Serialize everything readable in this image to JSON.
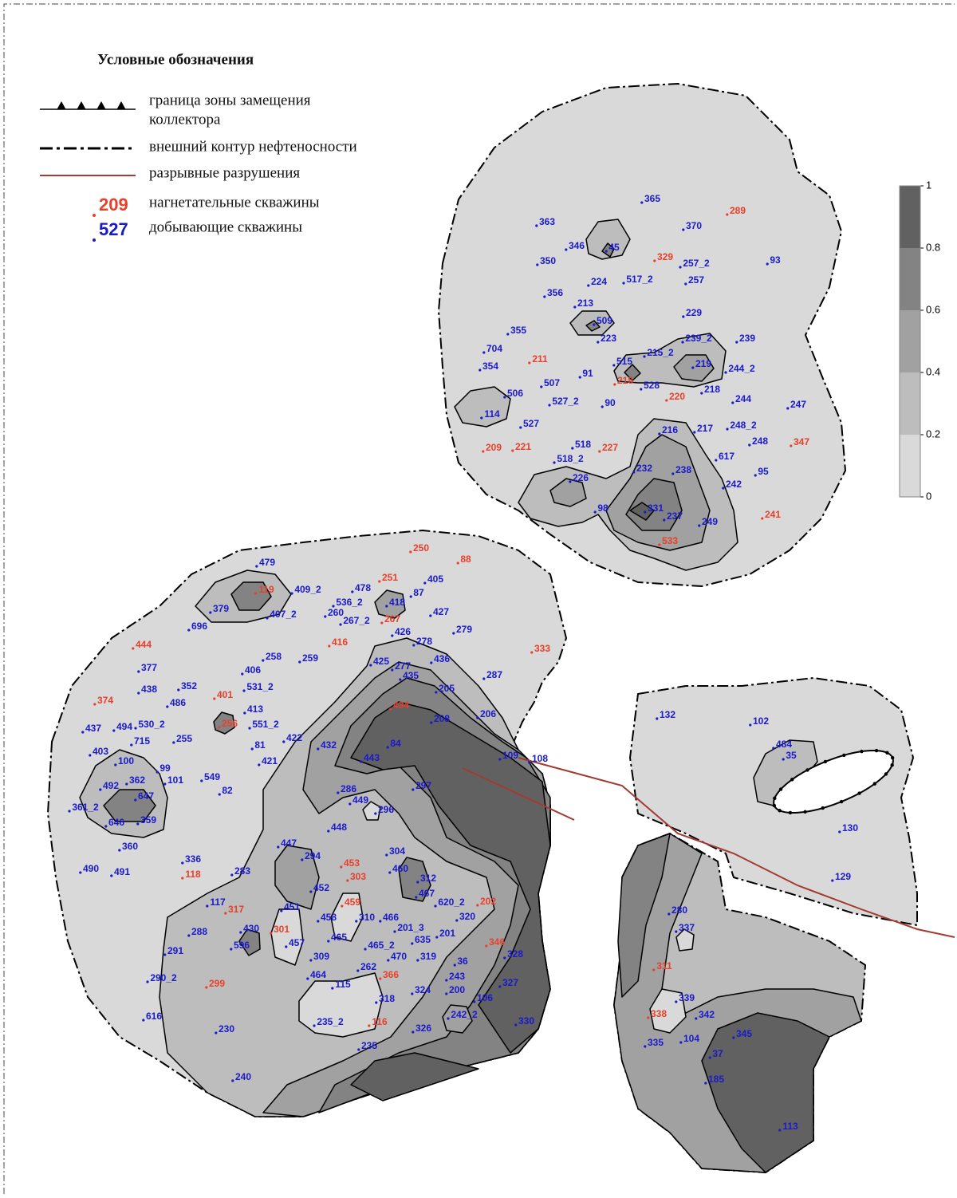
{
  "legend": {
    "title": "Условные обозначения",
    "replacement_zone": [
      "граница зоны замещения",
      "коллектора"
    ],
    "oil_contour": "внешний контур нефтеносности",
    "faults": "разрывные разрушения",
    "injection_sample": "209",
    "injection": "нагнетательные скважины",
    "production_sample": "527",
    "production": "добывающие скважины"
  },
  "colorbar": {
    "ticks": [
      0,
      0.2,
      0.4,
      0.6,
      0.8,
      1
    ],
    "colors": [
      "#d9d9d9",
      "#bdbdbd",
      "#a1a1a1",
      "#838383",
      "#616161"
    ]
  },
  "wells": {
    "production": [
      "365",
      "363",
      "370",
      "346",
      "45",
      "350",
      "257_2",
      "93",
      "224",
      "517_2",
      "257",
      "356",
      "213",
      "229",
      "509",
      "355",
      "223",
      "239_2",
      "239",
      "704",
      "215_2",
      "219",
      "515",
      "91",
      "354",
      "244_2",
      "507",
      "528",
      "218",
      "506",
      "527_2",
      "90",
      "244",
      "247",
      "114",
      "527",
      "216",
      "217",
      "248_2",
      "248",
      "518",
      "518_2",
      "617",
      "232",
      "238",
      "95",
      "226",
      "242",
      "98",
      "331",
      "237",
      "249",
      "479",
      "409_2",
      "478",
      "405",
      "536_2",
      "87",
      "418",
      "379",
      "407_2",
      "260",
      "267_2",
      "427",
      "696",
      "426",
      "279",
      "278",
      "258",
      "259",
      "425",
      "436",
      "406",
      "277",
      "377",
      "435",
      "287",
      "352",
      "531_2",
      "438",
      "205",
      "486",
      "413",
      "494",
      "530_2",
      "551_2",
      "437",
      "208",
      "206",
      "715",
      "255",
      "422",
      "81",
      "432",
      "84",
      "403",
      "109",
      "108",
      "100",
      "443",
      "421",
      "99",
      "362",
      "101",
      "549",
      "82",
      "297",
      "492",
      "647",
      "286",
      "361_2",
      "449",
      "296",
      "646",
      "359",
      "448",
      "360",
      "447",
      "294",
      "304",
      "336",
      "490",
      "491",
      "283",
      "460",
      "312",
      "452",
      "467",
      "117",
      "620_2",
      "451",
      "458",
      "310",
      "466",
      "320",
      "201_3",
      "288",
      "430",
      "596",
      "465",
      "635",
      "201",
      "465_2",
      "457",
      "291",
      "470",
      "319",
      "328",
      "309",
      "36",
      "262",
      "290_2",
      "464",
      "115",
      "243",
      "327",
      "200",
      "324",
      "106",
      "318",
      "616",
      "242_2",
      "330",
      "230",
      "235_2",
      "326",
      "235",
      "240",
      "132",
      "102",
      "484",
      "35",
      "130",
      "129",
      "280",
      "337",
      "339",
      "342",
      "345",
      "335",
      "104",
      "37",
      "185",
      "113"
    ],
    "injection": [
      "289",
      "329",
      "211",
      "215",
      "220",
      "209",
      "221",
      "227",
      "347",
      "241",
      "533",
      "250",
      "88",
      "251",
      "119",
      "267",
      "416",
      "444",
      "333",
      "401",
      "374",
      "434",
      "256",
      "453",
      "118",
      "303",
      "459",
      "202",
      "317",
      "301",
      "346",
      "299",
      "366",
      "116",
      "311",
      "338"
    ]
  }
}
